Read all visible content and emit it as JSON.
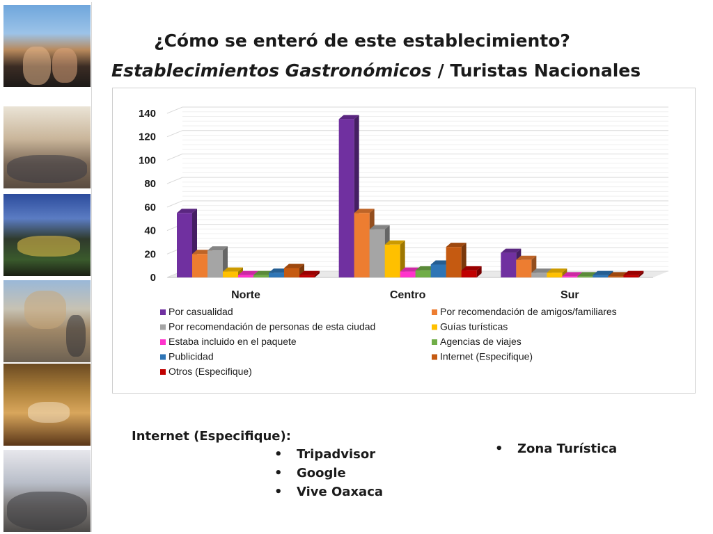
{
  "title": {
    "line1": "¿Cómo se enteró de este establecimiento?",
    "line2_italic": "Establecimientos Gastronómicos",
    "line2_rest": " / Turistas Nacionales"
  },
  "notes": {
    "heading": "Internet (Especifique):",
    "left_items": [
      "Tripadvisor",
      "Google",
      "Vive Oaxaca"
    ],
    "right_items": [
      "Zona Turística"
    ]
  },
  "chart_data": {
    "type": "bar",
    "style": "3d-clustered-column",
    "categories": [
      "Norte",
      "Centro",
      "Sur"
    ],
    "ylim": [
      0,
      140
    ],
    "yticks": [
      0,
      20,
      40,
      60,
      80,
      100,
      120,
      140
    ],
    "grid": true,
    "legend_position": "bottom",
    "series": [
      {
        "name": "Por casualidad",
        "color": "#7030a0",
        "values": [
          55,
          135,
          21
        ]
      },
      {
        "name": "Por recomendación de amigos/familiares",
        "color": "#ed7d31",
        "values": [
          20,
          55,
          15
        ]
      },
      {
        "name": "Por recomendación de personas de esta ciudad",
        "color": "#a5a5a5",
        "values": [
          23,
          41,
          4
        ]
      },
      {
        "name": "Guías turísticas",
        "color": "#ffc000",
        "values": [
          5,
          28,
          4
        ]
      },
      {
        "name": "Estaba incluido en el paquete",
        "color": "#ff33cc",
        "values": [
          2,
          5,
          1
        ]
      },
      {
        "name": "Agencias de viajes",
        "color": "#70ad47",
        "values": [
          2,
          6,
          1
        ]
      },
      {
        "name": "Publicidad",
        "color": "#2e75b6",
        "values": [
          4,
          11,
          2
        ]
      },
      {
        "name": "Internet (Especifique)",
        "color": "#c55a11",
        "values": [
          8,
          26,
          1
        ]
      },
      {
        "name": "Otros (Especifique)",
        "color": "#c00000",
        "values": [
          2,
          6,
          2
        ]
      }
    ]
  }
}
